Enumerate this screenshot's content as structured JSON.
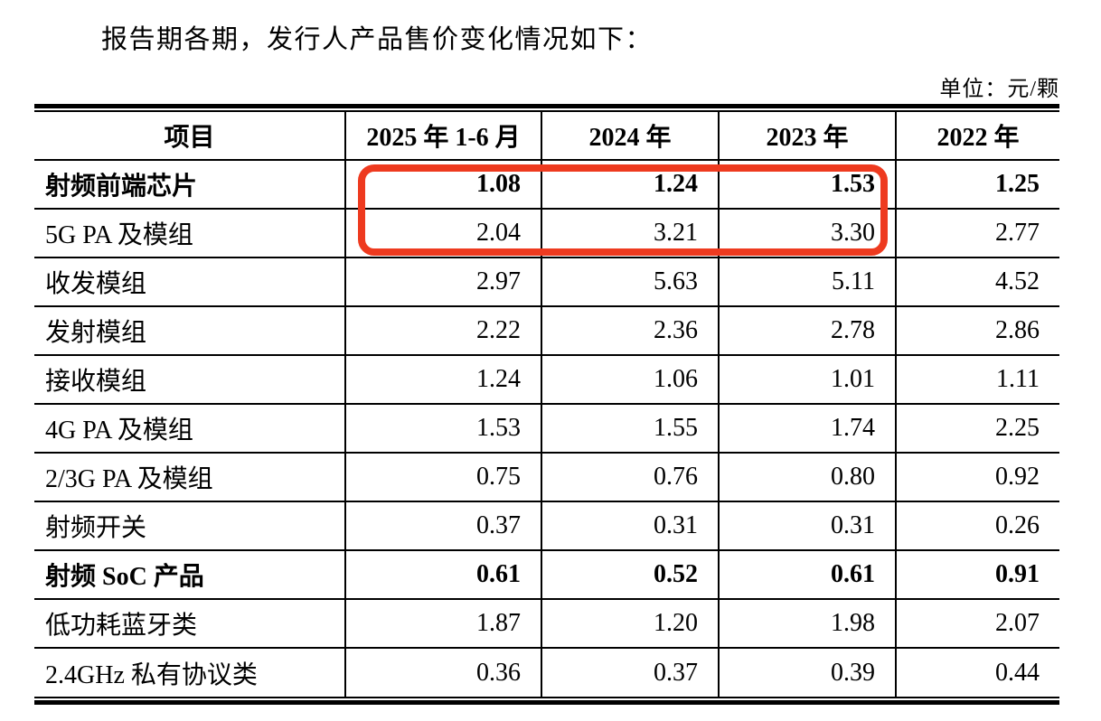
{
  "page": {
    "intro_text": "报告期各期，发行人产品售价变化情况如下：",
    "unit_label": "单位：元/颗"
  },
  "table": {
    "columns": [
      "项目",
      "2025 年 1-6 月",
      "2024 年",
      "2023 年",
      "2022 年"
    ],
    "rows": [
      {
        "label": "射频前端芯片",
        "values": [
          "1.08",
          "1.24",
          "1.53",
          "1.25"
        ],
        "bold": true
      },
      {
        "label": "5G PA 及模组",
        "values": [
          "2.04",
          "3.21",
          "3.30",
          "2.77"
        ],
        "bold": false
      },
      {
        "label": "收发模组",
        "values": [
          "2.97",
          "5.63",
          "5.11",
          "4.52"
        ],
        "bold": false
      },
      {
        "label": "发射模组",
        "values": [
          "2.22",
          "2.36",
          "2.78",
          "2.86"
        ],
        "bold": false
      },
      {
        "label": "接收模组",
        "values": [
          "1.24",
          "1.06",
          "1.01",
          "1.11"
        ],
        "bold": false
      },
      {
        "label": "4G PA 及模组",
        "values": [
          "1.53",
          "1.55",
          "1.74",
          "2.25"
        ],
        "bold": false
      },
      {
        "label": "2/3G PA 及模组",
        "values": [
          "0.75",
          "0.76",
          "0.80",
          "0.92"
        ],
        "bold": false
      },
      {
        "label": "射频开关",
        "values": [
          "0.37",
          "0.31",
          "0.31",
          "0.26"
        ],
        "bold": false
      },
      {
        "label": "射频 SoC 产品",
        "values": [
          "0.61",
          "0.52",
          "0.61",
          "0.91"
        ],
        "bold": true
      },
      {
        "label": "低功耗蓝牙类",
        "values": [
          "1.87",
          "1.20",
          "1.98",
          "2.07"
        ],
        "bold": false
      },
      {
        "label": "2.4GHz 私有协议类",
        "values": [
          "0.36",
          "0.37",
          "0.39",
          "0.44"
        ],
        "bold": false
      }
    ]
  },
  "annotation": {
    "type": "highlight-box",
    "color": "#ee3a1f",
    "rows_highlighted": [
      "射频前端芯片",
      "5G PA 及模组"
    ],
    "columns_highlighted": [
      "2025 年 1-6 月",
      "2024 年",
      "2023 年"
    ]
  }
}
